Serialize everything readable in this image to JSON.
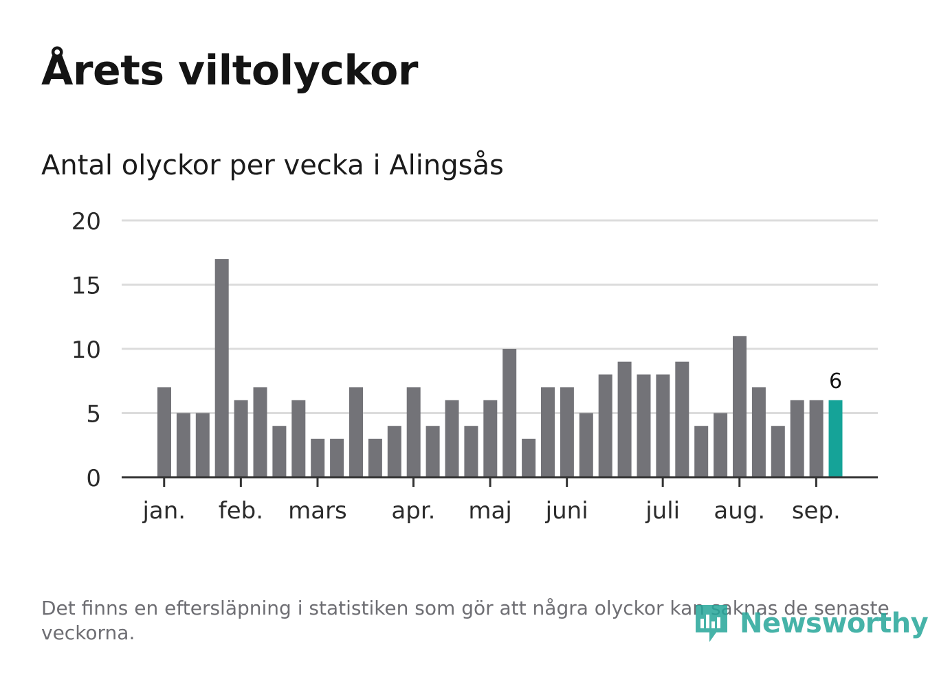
{
  "title": "Årets viltolyckor",
  "subtitle": "Antal olyckor per vecka i Alingsås",
  "footnote": "Det finns en eftersläpning i statistiken som gör att några olyckor kan saknas de senaste veckorna.",
  "logo_text": "Newsworthy",
  "colors": {
    "bar": "#737378",
    "highlight": "#15a398",
    "grid": "#dcdcdc",
    "axis": "#333333",
    "logo": "#26a69a"
  },
  "chart_data": {
    "type": "bar",
    "ylim": [
      0,
      20
    ],
    "yticks": [
      0,
      5,
      10,
      15,
      20
    ],
    "grid": true,
    "values": [
      7,
      5,
      5,
      17,
      6,
      7,
      4,
      6,
      3,
      3,
      7,
      3,
      4,
      7,
      4,
      6,
      4,
      6,
      10,
      3,
      7,
      7,
      5,
      8,
      9,
      8,
      8,
      9,
      4,
      5,
      11,
      7,
      4,
      6,
      6,
      6
    ],
    "highlight_index": 35,
    "highlight_label": "6",
    "month_ticks": [
      {
        "label": "jan.",
        "bar": 0.35
      },
      {
        "label": "feb.",
        "bar": 4.35
      },
      {
        "label": "mars",
        "bar": 8.35
      },
      {
        "label": "apr.",
        "bar": 13.35
      },
      {
        "label": "maj",
        "bar": 17.35
      },
      {
        "label": "juni",
        "bar": 21.35
      },
      {
        "label": "juli",
        "bar": 26.35
      },
      {
        "label": "aug.",
        "bar": 30.35
      },
      {
        "label": "sep.",
        "bar": 34.35
      }
    ]
  }
}
